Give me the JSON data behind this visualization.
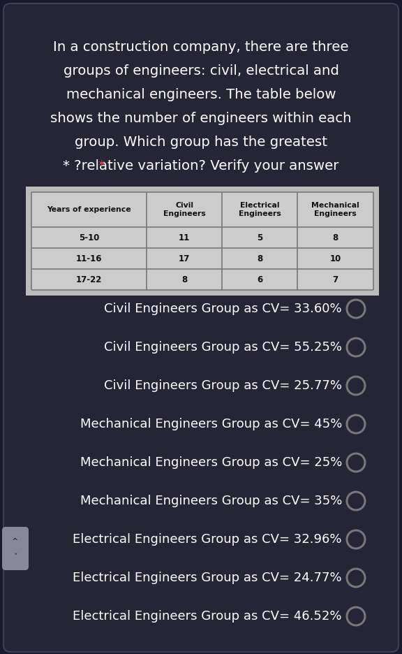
{
  "bg_color": "#1a1a2e",
  "card_color": "#252535",
  "text_color": "#ffffff",
  "table_bg": "#cccccc",
  "table_border": "#777777",
  "intro_lines": [
    "In a construction company, there are three",
    "groups of engineers: civil, electrical and",
    "mechanical engineers. The table below",
    "shows the number of engineers within each",
    "group. Which group has the greatest",
    "?relative variation? Verify your answer"
  ],
  "star_color": "#cc3333",
  "table_headers": [
    "Years of experience",
    "Civil\nEngineers",
    "Electrical\nEngineers",
    "Mechanical\nEngineers"
  ],
  "table_rows": [
    [
      "5-10",
      "11",
      "5",
      "8"
    ],
    [
      "11-16",
      "17",
      "8",
      "10"
    ],
    [
      "17-22",
      "8",
      "6",
      "7"
    ]
  ],
  "options": [
    "Civil Engineers Group as CV= 33.60%",
    "Civil Engineers Group as CV= 55.25%",
    "Civil Engineers Group as CV= 25.77%",
    "Mechanical Engineers Group as CV= 45%",
    "Mechanical Engineers Group as CV= 25%",
    "Mechanical Engineers Group as CV= 35%",
    "Electrical Engineers Group as CV= 32.96%",
    "Electrical Engineers Group as CV= 24.77%",
    "Electrical Engineers Group as CV= 46.52%"
  ],
  "circle_color": "#777777",
  "nav_button_color": "#888899",
  "figsize": [
    5.76,
    9.36
  ],
  "dpi": 100
}
